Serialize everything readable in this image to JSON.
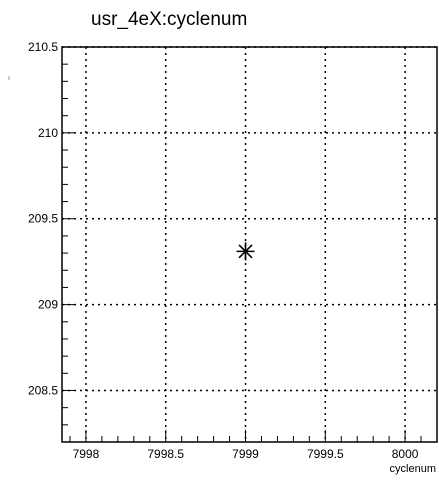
{
  "chart_data": {
    "type": "scatter",
    "title": "usr_4eX:cyclenum",
    "xlabel": "cyclenum",
    "ylabel": "",
    "xlim": [
      7997.85,
      8000.2
    ],
    "ylim": [
      208.2,
      210.5
    ],
    "x_ticks": [
      7998,
      7998.5,
      7999,
      7999.5,
      8000
    ],
    "x_tick_labels": [
      "7998",
      "7998.5",
      "7999",
      "7999.5",
      "8000"
    ],
    "y_ticks": [
      208.5,
      209,
      209.5,
      210,
      210.5
    ],
    "y_tick_labels": [
      "208.5",
      "209",
      "209.5",
      "210",
      "210.5"
    ],
    "grid": true,
    "marker": "asterisk",
    "points": [
      {
        "x": 7999,
        "y": 209.31
      }
    ]
  }
}
